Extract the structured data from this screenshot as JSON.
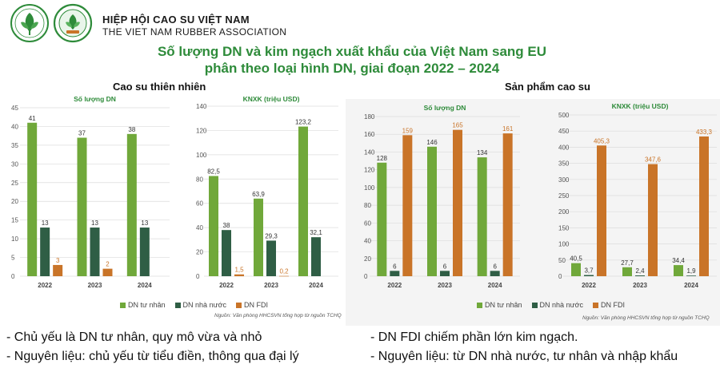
{
  "header": {
    "org_name_vi": "HIỆP HỘI CAO SU VIỆT NAM",
    "org_name_en": "THE VIET NAM RUBBER ASSOCIATION",
    "title_line1": "Số lượng DN và kim ngạch xuất  khẩu của Việt Nam sang EU",
    "title_line2": "phân theo loại hình DN, giai đoạn 2022 – 2024"
  },
  "groups": {
    "natural_rubber": "Cao su thiên nhiên",
    "rubber_products": "Sản phẩm cao su"
  },
  "legend": {
    "private": "DN tư nhân",
    "state": "DN nhà nước",
    "fdi": "DN FDI"
  },
  "colors": {
    "private": "#70a83a",
    "state": "#2f5e45",
    "fdi": "#c97428",
    "title": "#2e8b3a"
  },
  "source": {
    "left": "Nguồn: Văn phòng HHCSVN tổng hợp từ nguồn TCHQ",
    "right": "Nguồn: Văn phòng HHCSVN tổng hợp từ nguồn TCHQ"
  },
  "notes": {
    "left1": "- Chủ yếu là DN tư nhân, quy mô vừa và nhỏ",
    "left2": "- Nguyên liệu: chủ yếu từ tiểu điền, thông qua đại lý",
    "right1": "- DN FDI chiếm phần lớn kim ngạch.",
    "right2": "- Nguyên liệu: từ DN nhà nước, tư nhân và nhập khẩu"
  },
  "chart_data": [
    {
      "type": "bar",
      "group": "Cao su thiên nhiên",
      "title": "Số lượng DN",
      "categories": [
        "2022",
        "2023",
        "2024"
      ],
      "ylim": [
        0,
        45
      ],
      "yticks": [
        0,
        5,
        10,
        15,
        20,
        25,
        30,
        35,
        40,
        45
      ],
      "series": [
        {
          "name": "DN tư nhân",
          "key": "private",
          "values": [
            41,
            37,
            38
          ],
          "labels": [
            "41",
            "37",
            "38"
          ]
        },
        {
          "name": "DN nhà nước",
          "key": "state",
          "values": [
            13,
            13,
            13
          ],
          "labels": [
            "13",
            "13",
            "13"
          ]
        },
        {
          "name": "DN FDI",
          "key": "fdi",
          "values": [
            3,
            2,
            0
          ],
          "labels": [
            "3",
            "2",
            ""
          ]
        }
      ]
    },
    {
      "type": "bar",
      "group": "Cao su thiên nhiên",
      "title": "KNXK (triệu USD)",
      "categories": [
        "2022",
        "2023",
        "2024"
      ],
      "ylim": [
        0,
        140
      ],
      "yticks": [
        0,
        20,
        40,
        60,
        80,
        100,
        120,
        140
      ],
      "series": [
        {
          "name": "DN tư nhân",
          "key": "private",
          "values": [
            82.5,
            63.9,
            123.2
          ],
          "labels": [
            "82,5",
            "63,9",
            "123,2"
          ]
        },
        {
          "name": "DN nhà nước",
          "key": "state",
          "values": [
            38,
            29.3,
            32.1
          ],
          "labels": [
            "38",
            "29,3",
            "32,1"
          ]
        },
        {
          "name": "DN FDI",
          "key": "fdi",
          "values": [
            1.5,
            0.2,
            0
          ],
          "labels": [
            "1,5",
            "0,2",
            ""
          ]
        }
      ]
    },
    {
      "type": "bar",
      "group": "Sản phẩm cao su",
      "title": "Số lượng DN",
      "categories": [
        "2022",
        "2023",
        "2024"
      ],
      "ylim": [
        0,
        180
      ],
      "yticks": [
        0,
        20,
        40,
        60,
        80,
        100,
        120,
        140,
        160,
        180
      ],
      "series": [
        {
          "name": "DN tư nhân",
          "key": "private",
          "values": [
            128,
            146,
            134
          ],
          "labels": [
            "128",
            "146",
            "134"
          ]
        },
        {
          "name": "DN nhà nước",
          "key": "state",
          "values": [
            6,
            6,
            6
          ],
          "labels": [
            "6",
            "6",
            "6"
          ]
        },
        {
          "name": "DN FDI",
          "key": "fdi",
          "values": [
            159,
            165,
            161
          ],
          "labels": [
            "159",
            "165",
            "161"
          ]
        }
      ]
    },
    {
      "type": "bar",
      "group": "Sản phẩm cao su",
      "title": "KNXK (triệu USD)",
      "categories": [
        "2022",
        "2023",
        "2024"
      ],
      "ylim": [
        0,
        500
      ],
      "yticks": [
        0,
        50,
        100,
        150,
        200,
        250,
        300,
        350,
        400,
        450,
        500
      ],
      "series": [
        {
          "name": "DN tư nhân",
          "key": "private",
          "values": [
            40.5,
            27.7,
            34.4
          ],
          "labels": [
            "40,5",
            "27,7",
            "34,4"
          ]
        },
        {
          "name": "DN nhà nước",
          "key": "state",
          "values": [
            3.7,
            2.4,
            1.9
          ],
          "labels": [
            "3,7",
            "2,4",
            "1,9"
          ]
        },
        {
          "name": "DN FDI",
          "key": "fdi",
          "values": [
            405.3,
            347.6,
            433.3
          ],
          "labels": [
            "405,3",
            "347,6",
            "433,3"
          ]
        }
      ]
    }
  ]
}
